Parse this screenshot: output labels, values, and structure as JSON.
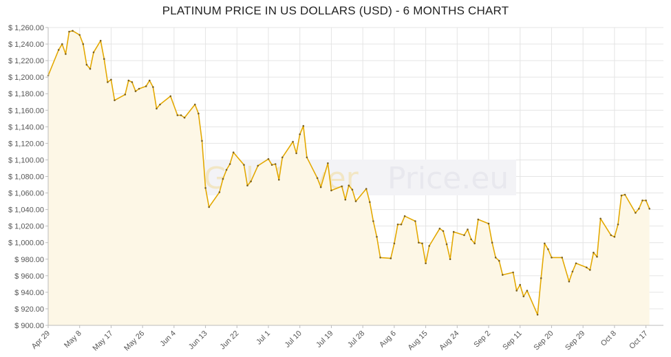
{
  "page": {
    "title": "PLATINUM PRICE IN US DOLLARS (USD) - 6 MONTHS CHART",
    "watermark_gold": "GoldSilver",
    "watermark_silver": "Price.eu"
  },
  "colors": {
    "line": "#e3a800",
    "fill": "#fdf7e6",
    "grid": "#e4e4e4",
    "axis": "#bbbbbb",
    "point": "#7a6020"
  },
  "chart_data": {
    "type": "area",
    "title": "PLATINUM PRICE IN US DOLLARS (USD) - 6 MONTHS CHART",
    "xlabel": "",
    "ylabel": "",
    "ylim": [
      900,
      1260
    ],
    "yticks": [
      900,
      920,
      940,
      960,
      980,
      1000,
      1020,
      1040,
      1060,
      1080,
      1100,
      1120,
      1140,
      1160,
      1180,
      1200,
      1220,
      1240,
      1260
    ],
    "ytick_labels": [
      "$ 900.00",
      "$ 920.00",
      "$ 940.00",
      "$ 960.00",
      "$ 980.00",
      "$ 1,000.00",
      "$ 1,020.00",
      "$ 1,040.00",
      "$ 1,060.00",
      "$ 1,080.00",
      "$ 1,100.00",
      "$ 1,120.00",
      "$ 1,140.00",
      "$ 1,160.00",
      "$ 1,180.00",
      "$ 1,200.00",
      "$ 1,220.00",
      "$ 1,240.00",
      "$ 1,260.00"
    ],
    "xrange_days": [
      0,
      176
    ],
    "xticks": [
      {
        "label": "Apr 29",
        "day": 0
      },
      {
        "label": "May 8",
        "day": 9
      },
      {
        "label": "May 17",
        "day": 18
      },
      {
        "label": "May 26",
        "day": 27
      },
      {
        "label": "Jun 4",
        "day": 36
      },
      {
        "label": "Jun 13",
        "day": 45
      },
      {
        "label": "Jun 22",
        "day": 54
      },
      {
        "label": "Jul 1",
        "day": 63
      },
      {
        "label": "Jul 10",
        "day": 72
      },
      {
        "label": "Jul 19",
        "day": 81
      },
      {
        "label": "Jul 28",
        "day": 90
      },
      {
        "label": "Aug 6",
        "day": 99
      },
      {
        "label": "Aug 15",
        "day": 108
      },
      {
        "label": "Aug 24",
        "day": 117
      },
      {
        "label": "Sep 2",
        "day": 126
      },
      {
        "label": "Sep 11",
        "day": 135
      },
      {
        "label": "Sep 20",
        "day": 144
      },
      {
        "label": "Sep 29",
        "day": 153
      },
      {
        "label": "Oct 8",
        "day": 162
      },
      {
        "label": "Oct 17",
        "day": 171
      }
    ],
    "series": [
      {
        "name": "",
        "points": [
          [
            0,
            1202
          ],
          [
            3,
            1233
          ],
          [
            4,
            1240
          ],
          [
            5,
            1228
          ],
          [
            6,
            1255
          ],
          [
            7,
            1256
          ],
          [
            9,
            1251
          ],
          [
            10,
            1240
          ],
          [
            11,
            1215
          ],
          [
            12,
            1210
          ],
          [
            13,
            1230
          ],
          [
            15,
            1244
          ],
          [
            16,
            1222
          ],
          [
            17,
            1194
          ],
          [
            18,
            1197
          ],
          [
            19,
            1172
          ],
          [
            22,
            1179
          ],
          [
            23,
            1196
          ],
          [
            24,
            1194
          ],
          [
            25,
            1183
          ],
          [
            26,
            1186
          ],
          [
            28,
            1189
          ],
          [
            29,
            1196
          ],
          [
            30,
            1188
          ],
          [
            31,
            1162
          ],
          [
            32,
            1167
          ],
          [
            35,
            1177
          ],
          [
            37,
            1154
          ],
          [
            38,
            1154
          ],
          [
            39,
            1151
          ],
          [
            42,
            1167
          ],
          [
            43,
            1156
          ],
          [
            44,
            1123
          ],
          [
            45,
            1066
          ],
          [
            46,
            1043
          ],
          [
            49,
            1061
          ],
          [
            50,
            1077
          ],
          [
            51,
            1088
          ],
          [
            52,
            1095
          ],
          [
            53,
            1109
          ],
          [
            56,
            1094
          ],
          [
            57,
            1069
          ],
          [
            58,
            1074
          ],
          [
            60,
            1093
          ],
          [
            63,
            1101
          ],
          [
            64,
            1094
          ],
          [
            65,
            1095
          ],
          [
            66,
            1076
          ],
          [
            67,
            1103
          ],
          [
            70,
            1122
          ],
          [
            71,
            1108
          ],
          [
            72,
            1131
          ],
          [
            73,
            1141
          ],
          [
            74,
            1103
          ],
          [
            77,
            1078
          ],
          [
            78,
            1067
          ],
          [
            80,
            1096
          ],
          [
            81,
            1063
          ],
          [
            84,
            1068
          ],
          [
            85,
            1052
          ],
          [
            86,
            1069
          ],
          [
            87,
            1064
          ],
          [
            88,
            1050
          ],
          [
            91,
            1065
          ],
          [
            92,
            1049
          ],
          [
            93,
            1026
          ],
          [
            94,
            1007
          ],
          [
            95,
            982
          ],
          [
            98,
            981
          ],
          [
            99,
            999
          ],
          [
            100,
            1022
          ],
          [
            101,
            1022
          ],
          [
            102,
            1032
          ],
          [
            105,
            1026
          ],
          [
            106,
            1000
          ],
          [
            107,
            999
          ],
          [
            108,
            975
          ],
          [
            109,
            996
          ],
          [
            112,
            1017
          ],
          [
            113,
            1014
          ],
          [
            114,
            998
          ],
          [
            115,
            980
          ],
          [
            116,
            1013
          ],
          [
            119,
            1009
          ],
          [
            120,
            1016
          ],
          [
            121,
            1004
          ],
          [
            122,
            999
          ],
          [
            123,
            1028
          ],
          [
            126,
            1023
          ],
          [
            127,
            1000
          ],
          [
            128,
            982
          ],
          [
            129,
            978
          ],
          [
            130,
            961
          ],
          [
            133,
            964
          ],
          [
            134,
            942
          ],
          [
            135,
            949
          ],
          [
            136,
            935
          ],
          [
            137,
            942
          ],
          [
            140,
            913
          ],
          [
            141,
            957
          ],
          [
            142,
            999
          ],
          [
            143,
            992
          ],
          [
            144,
            982
          ],
          [
            147,
            982
          ],
          [
            149,
            953
          ],
          [
            150,
            965
          ],
          [
            151,
            975
          ],
          [
            154,
            970
          ],
          [
            155,
            967
          ],
          [
            156,
            988
          ],
          [
            157,
            983
          ],
          [
            158,
            1029
          ],
          [
            161,
            1009
          ],
          [
            162,
            1007
          ],
          [
            163,
            1022
          ],
          [
            164,
            1057
          ],
          [
            165,
            1058
          ],
          [
            168,
            1036
          ],
          [
            169,
            1041
          ],
          [
            170,
            1051
          ],
          [
            171,
            1051
          ],
          [
            172,
            1041
          ]
        ]
      }
    ],
    "grid": true,
    "legend": "none"
  }
}
